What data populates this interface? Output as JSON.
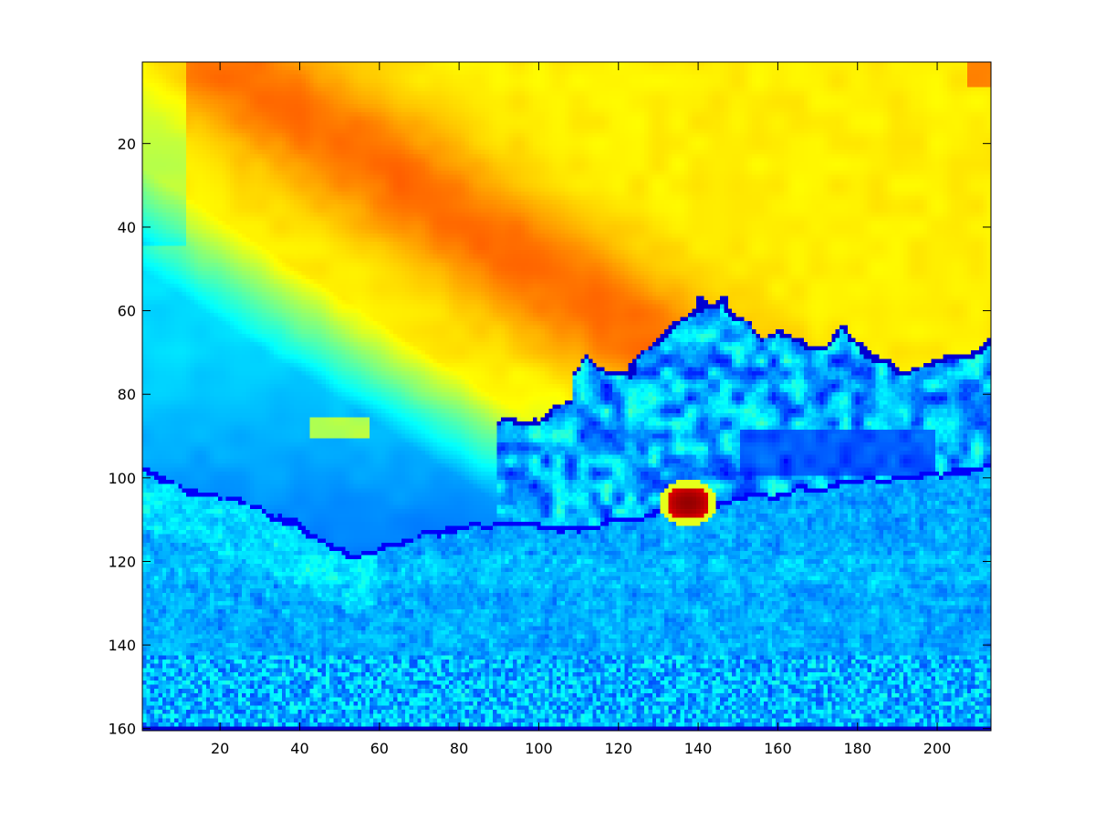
{
  "chart_data": {
    "type": "heatmap",
    "title": "",
    "xlabel": "",
    "ylabel": "",
    "colormap": "jet",
    "image_size": {
      "cols": 213,
      "rows": 160
    },
    "xlim": [
      0.5,
      213.5
    ],
    "ylim": [
      0.5,
      160.5
    ],
    "y_direction": "reverse",
    "xticks": [
      20,
      40,
      60,
      80,
      100,
      120,
      140,
      160,
      180,
      200
    ],
    "yticks": [
      20,
      40,
      60,
      80,
      100,
      120,
      140,
      160
    ],
    "xtick_labels": [
      "20",
      "40",
      "60",
      "80",
      "100",
      "120",
      "140",
      "160",
      "180",
      "200"
    ],
    "ytick_labels": [
      "20",
      "40",
      "60",
      "80",
      "100",
      "120",
      "140",
      "160"
    ],
    "grid": false,
    "regions": {
      "warm_band": "diagonal orange band from upper-middle toward lower-left, peak value ~0.78",
      "cold_corner": "cyan/light-blue in the upper-left corner, value ~0.35-0.5",
      "sky": "yellow field over most of upper image, value ~0.62-0.66",
      "cloud": "dark-blue/cyan blob spanning x≈90-213, y≈57-115",
      "ground": "blue textured region below the boundary at y≈97-118",
      "hot_spot": "red patch near x≈133-142, y≈103-110",
      "bottom_row": "dark navy row at y=160"
    }
  }
}
